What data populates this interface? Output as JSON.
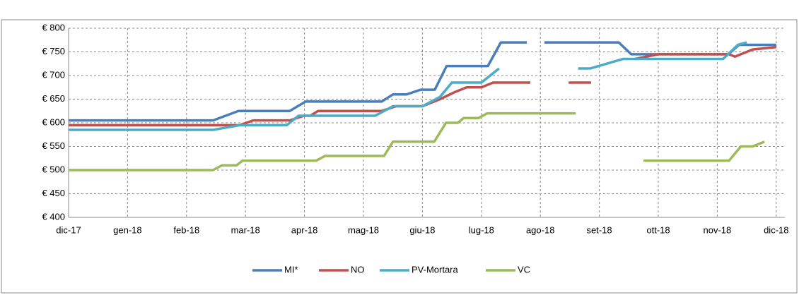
{
  "chart_data": {
    "type": "line",
    "xlim": [
      0,
      12.15
    ],
    "xticks": [
      {
        "value": 0,
        "label": "dic-17"
      },
      {
        "value": 1,
        "label": "gen-18"
      },
      {
        "value": 2,
        "label": "feb-18"
      },
      {
        "value": 3,
        "label": "mar-18"
      },
      {
        "value": 4,
        "label": "apr-18"
      },
      {
        "value": 5,
        "label": "mag-18"
      },
      {
        "value": 6,
        "label": "giu-18"
      },
      {
        "value": 7,
        "label": "lug-18"
      },
      {
        "value": 8,
        "label": "ago-18"
      },
      {
        "value": 9,
        "label": "set-18"
      },
      {
        "value": 10,
        "label": "ott-18"
      },
      {
        "value": 11,
        "label": "nov-18"
      },
      {
        "value": 12,
        "label": "dic-18"
      }
    ],
    "ylim": [
      400,
      800
    ],
    "yticks": [
      {
        "value": 400,
        "label": "€ 400"
      },
      {
        "value": 450,
        "label": "€ 450"
      },
      {
        "value": 500,
        "label": "€ 500"
      },
      {
        "value": 550,
        "label": "€ 550"
      },
      {
        "value": 600,
        "label": "€ 600"
      },
      {
        "value": 650,
        "label": "€ 650"
      },
      {
        "value": 700,
        "label": "€ 700"
      },
      {
        "value": 750,
        "label": "€ 750"
      },
      {
        "value": 800,
        "label": "€ 800"
      }
    ],
    "grid": true,
    "legend": "bottom",
    "series": [
      {
        "name": "MI*",
        "color": "#4a7ebb",
        "x": [
          0,
          2.45,
          2.88,
          3.75,
          4.02,
          5.31,
          5.5,
          5.73,
          5.97,
          6.21,
          6.41,
          7.11,
          7.33,
          7.77,
          7.9,
          8.07,
          9.33,
          9.54,
          11.19,
          11.37,
          12.0
        ],
        "values": [
          605,
          605,
          625,
          625,
          645,
          645,
          660,
          660,
          670,
          670,
          720,
          720,
          770,
          770,
          null,
          770,
          770,
          745,
          745,
          765,
          765
        ]
      },
      {
        "name": "NO",
        "color": "#c0504d",
        "x": [
          0,
          2.9,
          3.13,
          3.75,
          3.99,
          4.1,
          4.23,
          5.31,
          5.55,
          6.0,
          6.3,
          6.55,
          6.75,
          7.0,
          7.2,
          7.83,
          8.1,
          8.48,
          8.86,
          8.95,
          9.6,
          10.0,
          11.2,
          11.3,
          11.6,
          12.0
        ],
        "values": [
          595,
          595,
          605,
          605,
          615,
          615,
          625,
          625,
          635,
          635,
          650,
          665,
          675,
          675,
          685,
          685,
          null,
          685,
          685,
          null,
          735,
          745,
          745,
          740,
          755,
          760
        ]
      },
      {
        "name": "PV-Mortara",
        "color": "#4bacc6",
        "x": [
          0,
          2.45,
          2.9,
          3.7,
          3.9,
          5.2,
          5.5,
          6.0,
          6.3,
          6.5,
          7.0,
          7.3,
          7.9,
          8.64,
          8.85,
          9.4,
          11.1,
          11.35,
          11.5
        ],
        "values": [
          585,
          585,
          595,
          595,
          615,
          615,
          635,
          635,
          655,
          685,
          685,
          715,
          null,
          715,
          715,
          735,
          735,
          765,
          770
        ]
      },
      {
        "name": "VC",
        "color": "#9bbb59",
        "x": [
          0,
          2.45,
          2.6,
          2.85,
          2.95,
          4.2,
          4.35,
          5.35,
          5.5,
          6.2,
          6.4,
          6.6,
          6.7,
          6.95,
          7.1,
          8.6,
          9.2,
          9.75,
          11.2,
          11.4,
          11.6,
          11.8
        ],
        "values": [
          500,
          500,
          510,
          510,
          520,
          520,
          530,
          530,
          560,
          560,
          600,
          600,
          610,
          610,
          620,
          620,
          null,
          520,
          520,
          550,
          550,
          560
        ]
      }
    ]
  }
}
